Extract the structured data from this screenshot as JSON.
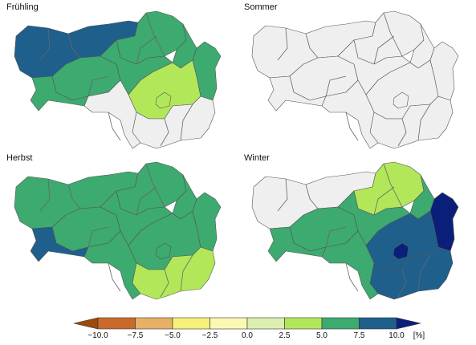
{
  "panels": [
    {
      "title": "Frühling",
      "regions": [
        {
          "id": "nw",
          "class": "10.0"
        },
        {
          "id": "nc",
          "class": "7.5"
        },
        {
          "id": "ne",
          "class": "7.5"
        },
        {
          "id": "w",
          "class": "7.5"
        },
        {
          "id": "c",
          "class": "7.5"
        },
        {
          "id": "e",
          "class": "5.0"
        },
        {
          "id": "ee",
          "class": "7.5"
        },
        {
          "id": "sw",
          "class": "7.5"
        },
        {
          "id": "s",
          "class": "none"
        },
        {
          "id": "se",
          "class": "none"
        },
        {
          "id": "g",
          "class": "5.0"
        }
      ]
    },
    {
      "title": "Sommer",
      "regions": [
        {
          "id": "nw",
          "class": "none"
        },
        {
          "id": "nc",
          "class": "none"
        },
        {
          "id": "ne",
          "class": "none"
        },
        {
          "id": "w",
          "class": "none"
        },
        {
          "id": "c",
          "class": "none"
        },
        {
          "id": "e",
          "class": "none"
        },
        {
          "id": "ee",
          "class": "none"
        },
        {
          "id": "sw",
          "class": "none"
        },
        {
          "id": "s",
          "class": "none"
        },
        {
          "id": "se",
          "class": "none"
        },
        {
          "id": "g",
          "class": "none"
        }
      ]
    },
    {
      "title": "Herbst",
      "regions": [
        {
          "id": "nw",
          "class": "7.5"
        },
        {
          "id": "nc",
          "class": "7.5"
        },
        {
          "id": "ne",
          "class": "7.5"
        },
        {
          "id": "w",
          "class": "7.5"
        },
        {
          "id": "c",
          "class": "7.5"
        },
        {
          "id": "e",
          "class": "7.5"
        },
        {
          "id": "ee",
          "class": "7.5"
        },
        {
          "id": "sw",
          "class": "10.0"
        },
        {
          "id": "s",
          "class": "7.5"
        },
        {
          "id": "se",
          "class": "5.0"
        },
        {
          "id": "g",
          "class": "7.5"
        }
      ]
    },
    {
      "title": "Winter",
      "regions": [
        {
          "id": "nw",
          "class": "none"
        },
        {
          "id": "nc",
          "class": "5.0"
        },
        {
          "id": "ne",
          "class": "7.5"
        },
        {
          "id": "w",
          "class": "7.5"
        },
        {
          "id": "c",
          "class": "7.5"
        },
        {
          "id": "e",
          "class": "10.0"
        },
        {
          "id": "ee",
          "class": "max"
        },
        {
          "id": "sw",
          "class": "7.5"
        },
        {
          "id": "s",
          "class": "7.5"
        },
        {
          "id": "se",
          "class": "10.0"
        },
        {
          "id": "g",
          "class": "max"
        }
      ]
    }
  ],
  "legend": {
    "unit": "[%]",
    "ticks": [
      "−10.0",
      "−7.5",
      "−5.0",
      "−2.5",
      "0.0",
      "2.5",
      "5.0",
      "7.5",
      "10.0"
    ],
    "colors": {
      "min": "#9c4a0e",
      "-7.5": "#c96a2c",
      "-5.0": "#e8b066",
      "-2.5": "#f7f07a",
      "0.0": "#fbf8b4",
      "2.5": "#dcefb0",
      "5.0": "#b3e75a",
      "7.5": "#3daa70",
      "10.0": "#1e5f8c",
      "max": "#0a1f7a",
      "none": "#efefef"
    },
    "classes": [
      "-7.5",
      "-5.0",
      "-2.5",
      "0.0",
      "2.5",
      "5.0",
      "7.5",
      "10.0"
    ]
  }
}
